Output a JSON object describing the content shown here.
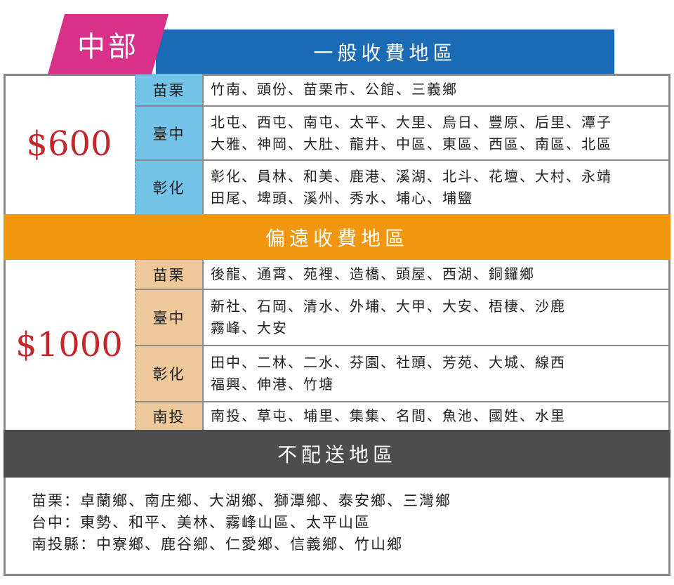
{
  "header": {
    "region": "中部",
    "title": "一般收費地區"
  },
  "general": {
    "price": "$600",
    "rows": [
      {
        "county": "苗栗",
        "towns": [
          "竹南、頭份、苗栗市、公館、三義鄉"
        ]
      },
      {
        "county": "臺中",
        "towns": [
          "北屯、西屯、南屯、太平、大里、烏日、豐原、后里、潭子",
          "大雅、神岡、大肚、龍井、中區、東區、西區、南區、北區"
        ]
      },
      {
        "county": "彰化",
        "towns": [
          "彰化、員林、和美、鹿港、溪湖、北斗、花壇、大村、永靖",
          "田尾、埤頭、溪州、秀水、埔心、埔鹽"
        ]
      }
    ]
  },
  "remote": {
    "title": "偏遠收費地區",
    "price": "$1000",
    "rows": [
      {
        "county": "苗栗",
        "towns": [
          "後龍、通霄、苑裡、造橋、頭屋、西湖、銅鑼鄉"
        ]
      },
      {
        "county": "臺中",
        "towns": [
          "新社、石岡、清水、外埔、大甲、大安、梧棲、沙鹿",
          "霧峰、大安"
        ]
      },
      {
        "county": "彰化",
        "towns": [
          "田中、二林、二水、芬園、社頭、芳苑、大城、線西",
          "福興、伸港、竹塘"
        ]
      },
      {
        "county": "南投",
        "towns": [
          "南投、草屯、埔里、集集、名間、魚池、國姓、水里"
        ]
      }
    ]
  },
  "no_delivery": {
    "title": "不配送地區",
    "lines": [
      "苗栗：卓蘭鄉、南庄鄉、大湖鄉、獅潭鄉、泰安鄉、三灣鄉",
      "台中：東勢、和平、美林、霧峰山區、太平山區",
      "南投縣：中寮鄉、鹿谷鄉、仁愛鄉、信義鄉、竹山鄉"
    ]
  },
  "colors": {
    "pink": "#d9318a",
    "blue": "#1a6ab5",
    "orange": "#f0960f",
    "gray": "#4d4d4d",
    "price": "#c1272d",
    "label_blue": "#74c3e8",
    "label_tan": "#ecc89a"
  }
}
